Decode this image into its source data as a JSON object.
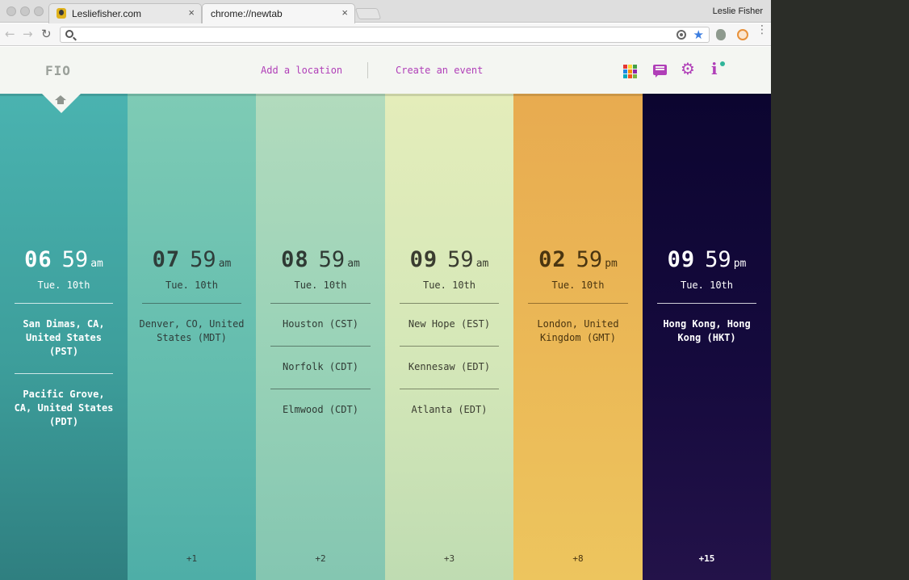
{
  "browser": {
    "tabs": [
      {
        "title": "Lesliefisher.com",
        "close": "×"
      },
      {
        "title": "chrome://newtab",
        "close": "×"
      }
    ],
    "profile_name": "Leslie Fisher",
    "nav": {
      "back": "←",
      "forward": "→",
      "reload": "↻"
    },
    "omnibox_value": "",
    "star": "★",
    "menu": "⋮"
  },
  "app": {
    "logo": "FIO",
    "add_location": "Add a location",
    "create_event": "Create an event",
    "icons": [
      "apps-grid-icon",
      "chat-icon",
      "gear-icon",
      "info-icon"
    ],
    "gear_glyph": "⚙",
    "info_glyph": "i",
    "accent_color": "#b03fb8",
    "apps_colors": [
      "#e53935",
      "#fdd835",
      "#43a047",
      "#1e88e5",
      "#fb8c00",
      "#8e24aa",
      "#00acc1",
      "#f4511e",
      "#7cb342"
    ]
  },
  "columns": [
    {
      "hh": "06",
      "mm": "59",
      "ampm": "am",
      "date": "Tue. 10th",
      "cities": [
        "San Dimas, CA, United States (PST)",
        "Pacific Grove, CA, United States (PDT)"
      ],
      "more": "",
      "bg": "linear-gradient(180deg,#4ab3b0 0%,#3d9e9b 55%,#2f7f80 100%)",
      "fg": "#ffffff",
      "rule": "rgba(255,255,255,0.75)",
      "bold_city": true
    },
    {
      "hh": "07",
      "mm": "59",
      "ampm": "am",
      "date": "Tue. 10th",
      "cities": [
        "Denver, CO, United States (MDT)"
      ],
      "more": "+1",
      "bg": "linear-gradient(180deg,#7ecbb5 0%,#62bcae 60%,#4eaea7 100%)",
      "fg": "#2f3d3a",
      "rule": "rgba(40,60,55,0.55)",
      "bold_city": false
    },
    {
      "hh": "08",
      "mm": "59",
      "ampm": "am",
      "date": "Tue. 10th",
      "cities": [
        "Houston (CST)",
        "Norfolk (CDT)",
        "Elmwood (CDT)"
      ],
      "more": "+2",
      "bg": "linear-gradient(180deg,#b2dbbd 0%,#98d2b7 55%,#84c6b1 100%)",
      "fg": "#2f3a34",
      "rule": "rgba(40,55,48,0.55)",
      "bold_city": false
    },
    {
      "hh": "09",
      "mm": "59",
      "ampm": "am",
      "date": "Tue. 10th",
      "cities": [
        "New Hope (EST)",
        "Kennesaw (EDT)",
        "Atlanta (EDT)"
      ],
      "more": "+3",
      "bg": "linear-gradient(180deg,#e4edba 0%,#d4e7b8 55%,#bfdcb2 100%)",
      "fg": "#3a3c30",
      "rule": "rgba(55,60,40,0.55)",
      "bold_city": false
    },
    {
      "hh": "02",
      "mm": "59",
      "ampm": "pm",
      "date": "Tue. 10th",
      "cities": [
        "London, United Kingdom (GMT)"
      ],
      "more": "+8",
      "bg": "linear-gradient(180deg,#e8ab50 0%,#ebb957 55%,#edc55e 100%)",
      "fg": "#4a3510",
      "rule": "rgba(80,55,15,0.55)",
      "bold_city": false
    },
    {
      "hh": "09",
      "mm": "59",
      "ampm": "pm",
      "date": "Tue. 10th",
      "cities": [
        "Hong Kong, Hong Kong (HKT)"
      ],
      "more": "+15",
      "bg": "linear-gradient(180deg,#0c0530 0%,#150a3d 55%,#231249 100%)",
      "fg": "#ffffff",
      "rule": "rgba(255,255,255,0.8)",
      "bold_city": true
    }
  ]
}
